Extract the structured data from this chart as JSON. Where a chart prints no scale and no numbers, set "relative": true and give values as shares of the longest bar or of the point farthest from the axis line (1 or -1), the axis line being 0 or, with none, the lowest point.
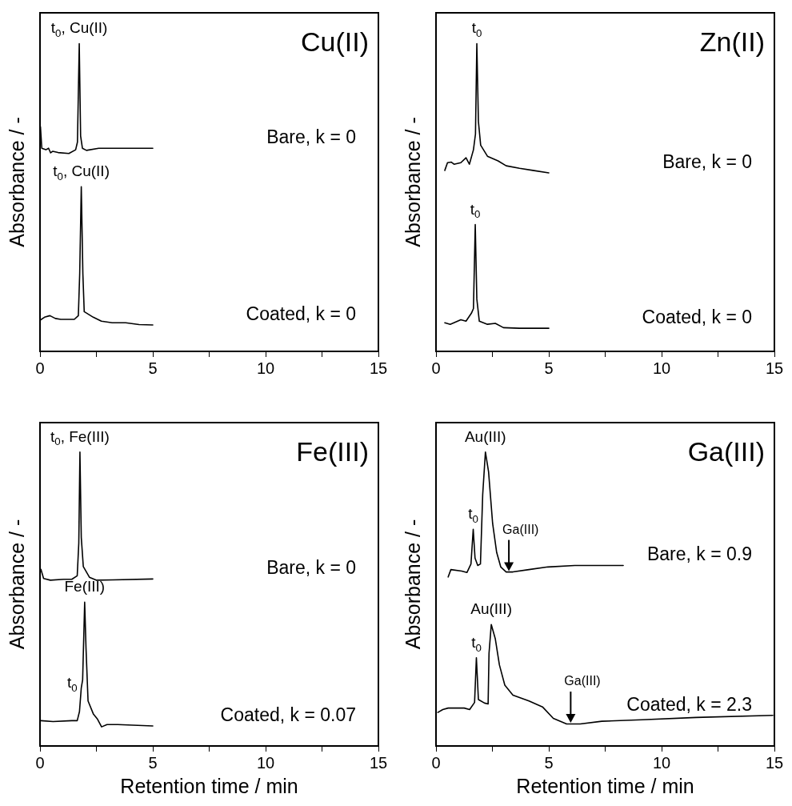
{
  "chart_data": [
    {
      "type": "line",
      "title": "Cu(II)",
      "ylabel": "Absorbance / -",
      "xlim": [
        0,
        15
      ],
      "xticks": [
        0,
        {
          "value": 2.5,
          "label": null
        },
        5,
        {
          "value": 7.5,
          "label": null
        },
        10,
        {
          "value": 12.5,
          "label": null
        },
        15
      ],
      "relative": true,
      "marker": "none",
      "series": [
        {
          "name": "Bare, k = 0",
          "color": "#000000",
          "x": [
            0.02,
            0.08,
            0.26,
            0.38,
            0.47,
            0.56,
            0.8,
            1.28,
            1.58,
            1.66,
            1.74,
            1.8,
            1.88,
            2.06,
            2.6,
            3.44,
            5.0
          ],
          "values": [
            0.73,
            0.66,
            0.655,
            0.66,
            0.645,
            0.65,
            0.646,
            0.643,
            0.655,
            0.68,
            1.0,
            0.7,
            0.66,
            0.653,
            0.66,
            0.66,
            0.66
          ]
        },
        {
          "name": "Coated, k = 0",
          "color": "#000000",
          "x": [
            0.02,
            0.2,
            0.44,
            0.68,
            0.92,
            1.52,
            1.7,
            1.76,
            1.83,
            1.9,
            1.96,
            2.36,
            2.72,
            3.2,
            3.8,
            4.39,
            5.0
          ],
          "values": [
            0.102,
            0.111,
            0.116,
            0.107,
            0.104,
            0.104,
            0.116,
            0.253,
            0.535,
            0.253,
            0.129,
            0.111,
            0.098,
            0.093,
            0.093,
            0.087,
            0.086
          ]
        }
      ],
      "annotations": [
        {
          "text": "t$_{0}$, Cu(II)",
          "x": 1.74,
          "y": 1.0
        },
        {
          "text": "t$_{0}$, Cu(II)",
          "x": 1.83,
          "y": 0.535
        }
      ]
    },
    {
      "type": "line",
      "title": "Zn(II)",
      "ylabel": "Absorbance / -",
      "xlim": [
        0,
        15
      ],
      "xticks": [
        0,
        {
          "value": 2.5,
          "label": null
        },
        5,
        {
          "value": 7.5,
          "label": null
        },
        10,
        {
          "value": 12.5,
          "label": null
        },
        15
      ],
      "relative": true,
      "marker": "none",
      "series": [
        {
          "name": "Bare, k = 0",
          "color": "#000000",
          "x": [
            0.39,
            0.51,
            0.68,
            0.8,
            1.1,
            1.33,
            1.48,
            1.66,
            1.75,
            1.81,
            1.88,
            1.98,
            2.28,
            2.75,
            3.11,
            3.7,
            4.29,
            5.0
          ],
          "values": [
            0.588,
            0.613,
            0.615,
            0.608,
            0.613,
            0.629,
            0.608,
            0.655,
            0.706,
            1.0,
            0.747,
            0.67,
            0.634,
            0.619,
            0.603,
            0.595,
            0.588,
            0.58
          ]
        },
        {
          "name": "Coated, k = 0",
          "color": "#000000",
          "x": [
            0.39,
            0.63,
            1.1,
            1.33,
            1.57,
            1.66,
            1.74,
            1.81,
            1.92,
            2.28,
            2.63,
            2.99,
            3.7,
            5.0
          ],
          "values": [
            0.093,
            0.088,
            0.103,
            0.098,
            0.124,
            0.139,
            0.412,
            0.17,
            0.098,
            0.088,
            0.091,
            0.077,
            0.075,
            0.075
          ]
        }
      ],
      "annotations": [
        {
          "text": "t$_{0}$",
          "x": 1.81,
          "y": 1.0
        },
        {
          "text": "t$_{0}$",
          "x": 1.74,
          "y": 0.412
        }
      ]
    },
    {
      "type": "line",
      "title": "Fe(III)",
      "ylabel": "Absorbance / -",
      "xlabel": "Retention time / min",
      "xlim": [
        0,
        15
      ],
      "xticks": [
        0,
        {
          "value": 2.5,
          "label": null
        },
        5,
        {
          "value": 7.5,
          "label": null
        },
        10,
        {
          "value": 12.5,
          "label": null
        },
        15
      ],
      "relative": true,
      "marker": "none",
      "series": [
        {
          "name": "Bare, k = 0",
          "color": "#000000",
          "x": [
            0.04,
            0.16,
            0.46,
            1.05,
            1.41,
            1.65,
            1.72,
            1.77,
            1.83,
            1.92,
            2.19,
            2.49,
            3.21,
            5.0
          ],
          "values": [
            0.601,
            0.57,
            0.564,
            0.567,
            0.567,
            0.579,
            0.691,
            1.0,
            0.709,
            0.61,
            0.574,
            0.564,
            0.565,
            0.568
          ]
        },
        {
          "name": "Coated, k = 0.07",
          "color": "#000000",
          "x": [
            0.04,
            0.58,
            1.41,
            1.65,
            1.75,
            1.83,
            1.89,
            1.98,
            2.04,
            2.13,
            2.37,
            2.55,
            2.73,
            2.97,
            3.45,
            5.0
          ],
          "values": [
            0.086,
            0.083,
            0.086,
            0.086,
            0.117,
            0.198,
            0.225,
            0.489,
            0.332,
            0.153,
            0.108,
            0.091,
            0.065,
            0.073,
            0.073,
            0.068
          ]
        }
      ],
      "annotations": [
        {
          "text": "t$_{0}$, Fe(III)",
          "x": 1.77,
          "y": 1.0
        },
        {
          "text": "Fe(III)",
          "x": 1.98,
          "y": 0.489
        },
        {
          "text": "t$_{0}$",
          "x": 1.83,
          "y": 0.198
        }
      ]
    },
    {
      "type": "line",
      "title": "Ga(III)",
      "ylabel": "Absorbance / -",
      "xlabel": "Retention time / min",
      "xlim": [
        0,
        15
      ],
      "xticks": [
        0,
        {
          "value": 2.5,
          "label": null
        },
        5,
        {
          "value": 7.5,
          "label": null
        },
        10,
        {
          "value": 12.5,
          "label": null
        },
        15
      ],
      "relative": true,
      "marker": "none",
      "series": [
        {
          "name": "Bare, k = 0.9",
          "color": "#000000",
          "x": [
            0.54,
            0.66,
            1.14,
            1.37,
            1.55,
            1.65,
            1.73,
            1.85,
            1.97,
            2.07,
            2.19,
            2.33,
            2.51,
            2.69,
            2.87,
            3.11,
            3.41,
            4.12,
            4.96,
            6.15,
            8.3
          ],
          "values": [
            0.575,
            0.6,
            0.595,
            0.59,
            0.619,
            0.737,
            0.639,
            0.614,
            0.619,
            0.855,
            1.0,
            0.933,
            0.757,
            0.658,
            0.609,
            0.592,
            0.592,
            0.6,
            0.609,
            0.614,
            0.614
          ]
        },
        {
          "name": "Coated, k = 2.3",
          "color": "#000000",
          "x": [
            0.08,
            0.3,
            0.54,
            0.78,
            1.25,
            1.49,
            1.71,
            1.79,
            1.88,
            2.15,
            2.31,
            2.35,
            2.45,
            2.63,
            2.81,
            3.05,
            3.41,
            4.12,
            4.72,
            5.2,
            5.79,
            6.39,
            7.35,
            9.14,
            11.53,
            14.93
          ],
          "values": [
            0.114,
            0.124,
            0.129,
            0.129,
            0.129,
            0.124,
            0.148,
            0.3,
            0.158,
            0.146,
            0.143,
            0.315,
            0.413,
            0.364,
            0.276,
            0.207,
            0.173,
            0.153,
            0.133,
            0.094,
            0.075,
            0.075,
            0.084,
            0.089,
            0.097,
            0.104
          ]
        }
      ],
      "annotations": [
        {
          "text": "t$_{0}$",
          "x": 1.65,
          "y": 0.737
        },
        {
          "text": "Au(III)",
          "x": 2.19,
          "y": 1.0
        },
        {
          "text": "Ga(III)",
          "x": 3.23,
          "y": 0.592
        },
        {
          "text": "t$_{0}$",
          "x": 1.79,
          "y": 0.3
        },
        {
          "text": "Au(III)",
          "x": 2.45,
          "y": 0.413
        },
        {
          "text": "Ga(III)",
          "x": 5.97,
          "y": 0.076
        }
      ]
    }
  ]
}
